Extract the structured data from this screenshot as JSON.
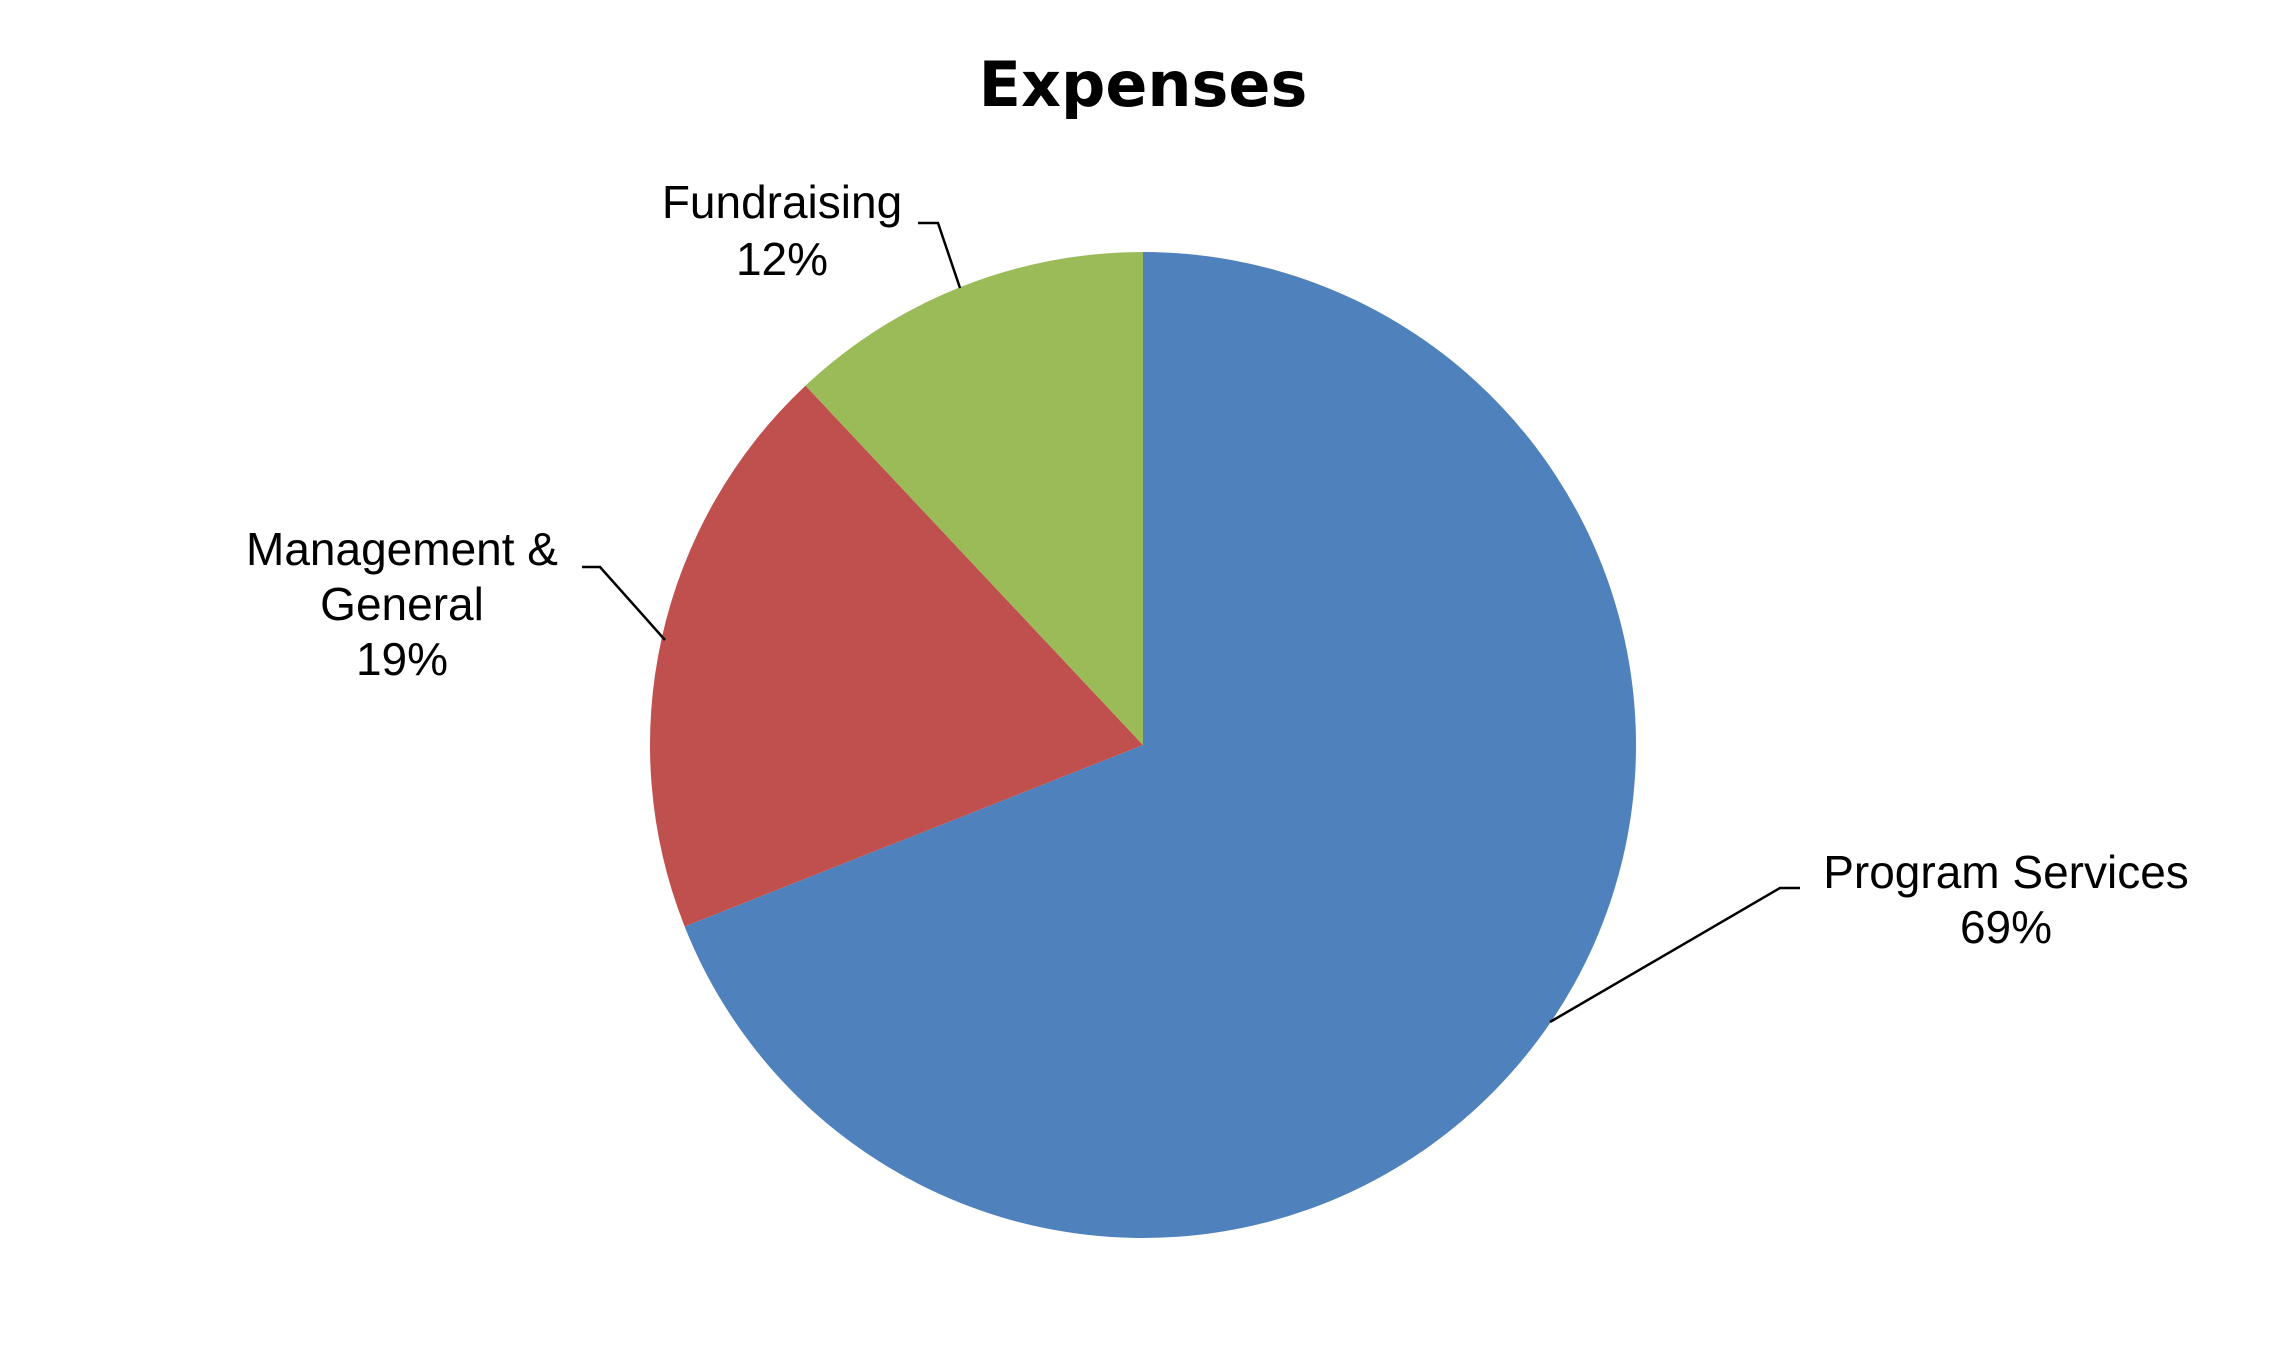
{
  "chart_data": {
    "type": "pie",
    "title": "Expenses",
    "start_angle_deg": 0,
    "direction": "clockwise",
    "slices": [
      {
        "label_lines": [
          "Program Services"
        ],
        "percent_label": "69%",
        "value": 69,
        "color": "#4F81BD"
      },
      {
        "label_lines": [
          "Management &",
          "General"
        ],
        "percent_label": "19%",
        "value": 19,
        "color": "#C0504D"
      },
      {
        "label_lines": [
          "Fundraising"
        ],
        "percent_label": "12%",
        "value": 12,
        "color": "#9BBB59"
      }
    ],
    "legend": "none"
  }
}
